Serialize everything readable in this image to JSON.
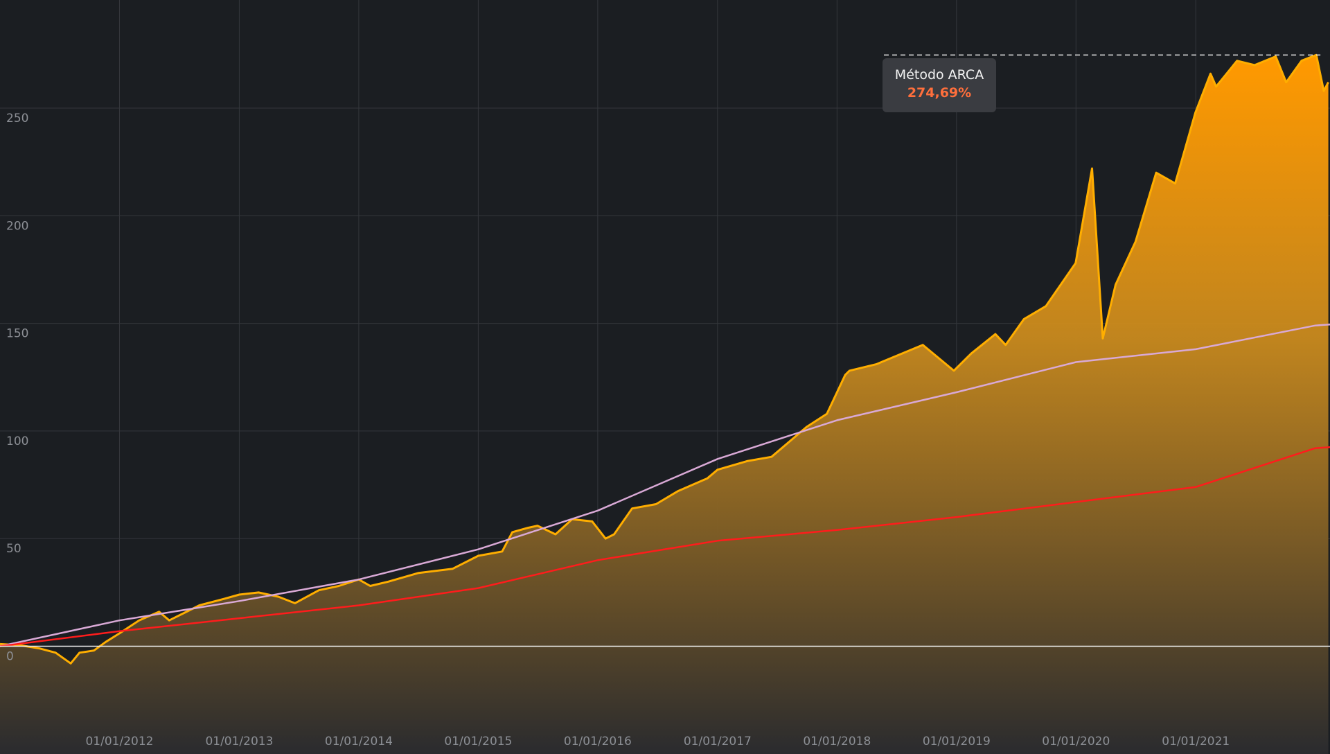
{
  "colors": {
    "background": "#1b1e22",
    "grid": "#34373c",
    "tick_text": "#8c8f95",
    "arca_line": "#ffae00",
    "arca_fill_top": "#ff9900",
    "arca_fill_bottom": "#2a2b2e",
    "lilac_line": "#d9a9d6",
    "red_line": "#ff1c1c",
    "zero_line": "#f0f0f0",
    "tooltip_bg": "#3a3c41",
    "tooltip_value": "#ff6f3c"
  },
  "tooltip": {
    "series_name": "Método ARCA",
    "value_text": "274,69%"
  },
  "chart_data": {
    "type": "area",
    "x_axis": {
      "type": "date",
      "range": [
        "2011-01-01",
        "2022-02-15"
      ],
      "tick_labels": [
        "01/01/2012",
        "01/01/2013",
        "01/01/2014",
        "01/01/2015",
        "01/01/2016",
        "01/01/2017",
        "01/01/2018",
        "01/01/2019",
        "01/01/2020",
        "01/01/2021"
      ]
    },
    "y_axis": {
      "range": [
        -35,
        300
      ],
      "tick_labels": [
        "0",
        "50",
        "100",
        "150",
        "200",
        "250"
      ],
      "tick_values": [
        0,
        50,
        100,
        150,
        200,
        250
      ]
    },
    "grid": true,
    "zero_line": true,
    "peak_marker": {
      "x": "2022-01-04",
      "y": 274.69,
      "label": "274,69%"
    },
    "series": [
      {
        "name": "Método ARCA",
        "style": "area",
        "color": "#ffae00",
        "points": [
          [
            "2011-01-01",
            1
          ],
          [
            "2011-03-01",
            0.5
          ],
          [
            "2011-05-01",
            -1
          ],
          [
            "2011-06-20",
            -3
          ],
          [
            "2011-08-05",
            -8
          ],
          [
            "2011-09-01",
            -3
          ],
          [
            "2011-10-15",
            -2
          ],
          [
            "2011-11-20",
            2
          ],
          [
            "2012-01-01",
            6
          ],
          [
            "2012-03-01",
            12
          ],
          [
            "2012-05-01",
            16
          ],
          [
            "2012-06-01",
            12
          ],
          [
            "2012-09-01",
            19
          ],
          [
            "2012-11-15",
            22
          ],
          [
            "2013-01-01",
            24
          ],
          [
            "2013-03-01",
            25
          ],
          [
            "2013-05-01",
            23
          ],
          [
            "2013-06-20",
            20
          ],
          [
            "2013-09-01",
            26
          ],
          [
            "2013-11-01",
            28
          ],
          [
            "2014-01-01",
            31
          ],
          [
            "2014-02-05",
            28
          ],
          [
            "2014-04-01",
            30
          ],
          [
            "2014-07-01",
            34
          ],
          [
            "2014-10-15",
            36
          ],
          [
            "2015-01-01",
            42
          ],
          [
            "2015-03-15",
            44
          ],
          [
            "2015-04-15",
            53
          ],
          [
            "2015-06-01",
            55
          ],
          [
            "2015-07-01",
            56
          ],
          [
            "2015-08-25",
            52
          ],
          [
            "2015-10-15",
            59
          ],
          [
            "2015-12-15",
            58
          ],
          [
            "2016-01-25",
            50
          ],
          [
            "2016-02-20",
            52
          ],
          [
            "2016-04-15",
            64
          ],
          [
            "2016-06-27",
            66
          ],
          [
            "2016-09-01",
            72
          ],
          [
            "2016-12-01",
            78
          ],
          [
            "2017-01-01",
            82
          ],
          [
            "2017-04-01",
            86
          ],
          [
            "2017-06-15",
            88
          ],
          [
            "2017-10-01",
            102
          ],
          [
            "2017-12-01",
            108
          ],
          [
            "2018-01-26",
            126
          ],
          [
            "2018-02-08",
            128
          ],
          [
            "2018-05-01",
            131
          ],
          [
            "2018-09-20",
            140
          ],
          [
            "2018-12-24",
            128
          ],
          [
            "2019-02-15",
            136
          ],
          [
            "2019-04-30",
            145
          ],
          [
            "2019-05-31",
            140
          ],
          [
            "2019-07-26",
            152
          ],
          [
            "2019-10-01",
            158
          ],
          [
            "2019-12-31",
            178
          ],
          [
            "2020-02-19",
            222
          ],
          [
            "2020-03-23",
            143
          ],
          [
            "2020-05-01",
            168
          ],
          [
            "2020-07-01",
            188
          ],
          [
            "2020-09-02",
            220
          ],
          [
            "2020-10-30",
            215
          ],
          [
            "2020-12-31",
            248
          ],
          [
            "2021-02-15",
            266
          ],
          [
            "2021-03-04",
            260
          ],
          [
            "2021-05-07",
            272
          ],
          [
            "2021-06-30",
            270
          ],
          [
            "2021-09-02",
            274
          ],
          [
            "2021-10-04",
            262
          ],
          [
            "2021-11-20",
            272
          ],
          [
            "2022-01-04",
            274.69
          ],
          [
            "2022-01-27",
            258
          ],
          [
            "2022-02-10",
            262
          ]
        ]
      },
      {
        "name": "",
        "style": "line",
        "color": "#d9a9d6",
        "points": [
          [
            "2011-01-01",
            0
          ],
          [
            "2012-01-01",
            12
          ],
          [
            "2013-01-01",
            21
          ],
          [
            "2014-01-01",
            31
          ],
          [
            "2015-01-01",
            45
          ],
          [
            "2016-01-01",
            63
          ],
          [
            "2017-01-01",
            87
          ],
          [
            "2018-01-01",
            105
          ],
          [
            "2019-01-01",
            118
          ],
          [
            "2020-01-01",
            132
          ],
          [
            "2021-01-01",
            138
          ],
          [
            "2022-01-01",
            149
          ],
          [
            "2022-02-15",
            149.5
          ]
        ]
      },
      {
        "name": "",
        "style": "line",
        "color": "#ff1c1c",
        "points": [
          [
            "2011-01-01",
            0
          ],
          [
            "2012-01-01",
            7
          ],
          [
            "2013-01-01",
            13
          ],
          [
            "2014-01-01",
            19
          ],
          [
            "2015-01-01",
            27
          ],
          [
            "2016-01-01",
            40
          ],
          [
            "2017-01-01",
            49
          ],
          [
            "2018-01-01",
            54
          ],
          [
            "2019-01-01",
            60
          ],
          [
            "2020-01-01",
            67
          ],
          [
            "2021-01-01",
            74
          ],
          [
            "2022-01-01",
            92
          ],
          [
            "2022-02-15",
            92.5
          ]
        ]
      }
    ]
  }
}
